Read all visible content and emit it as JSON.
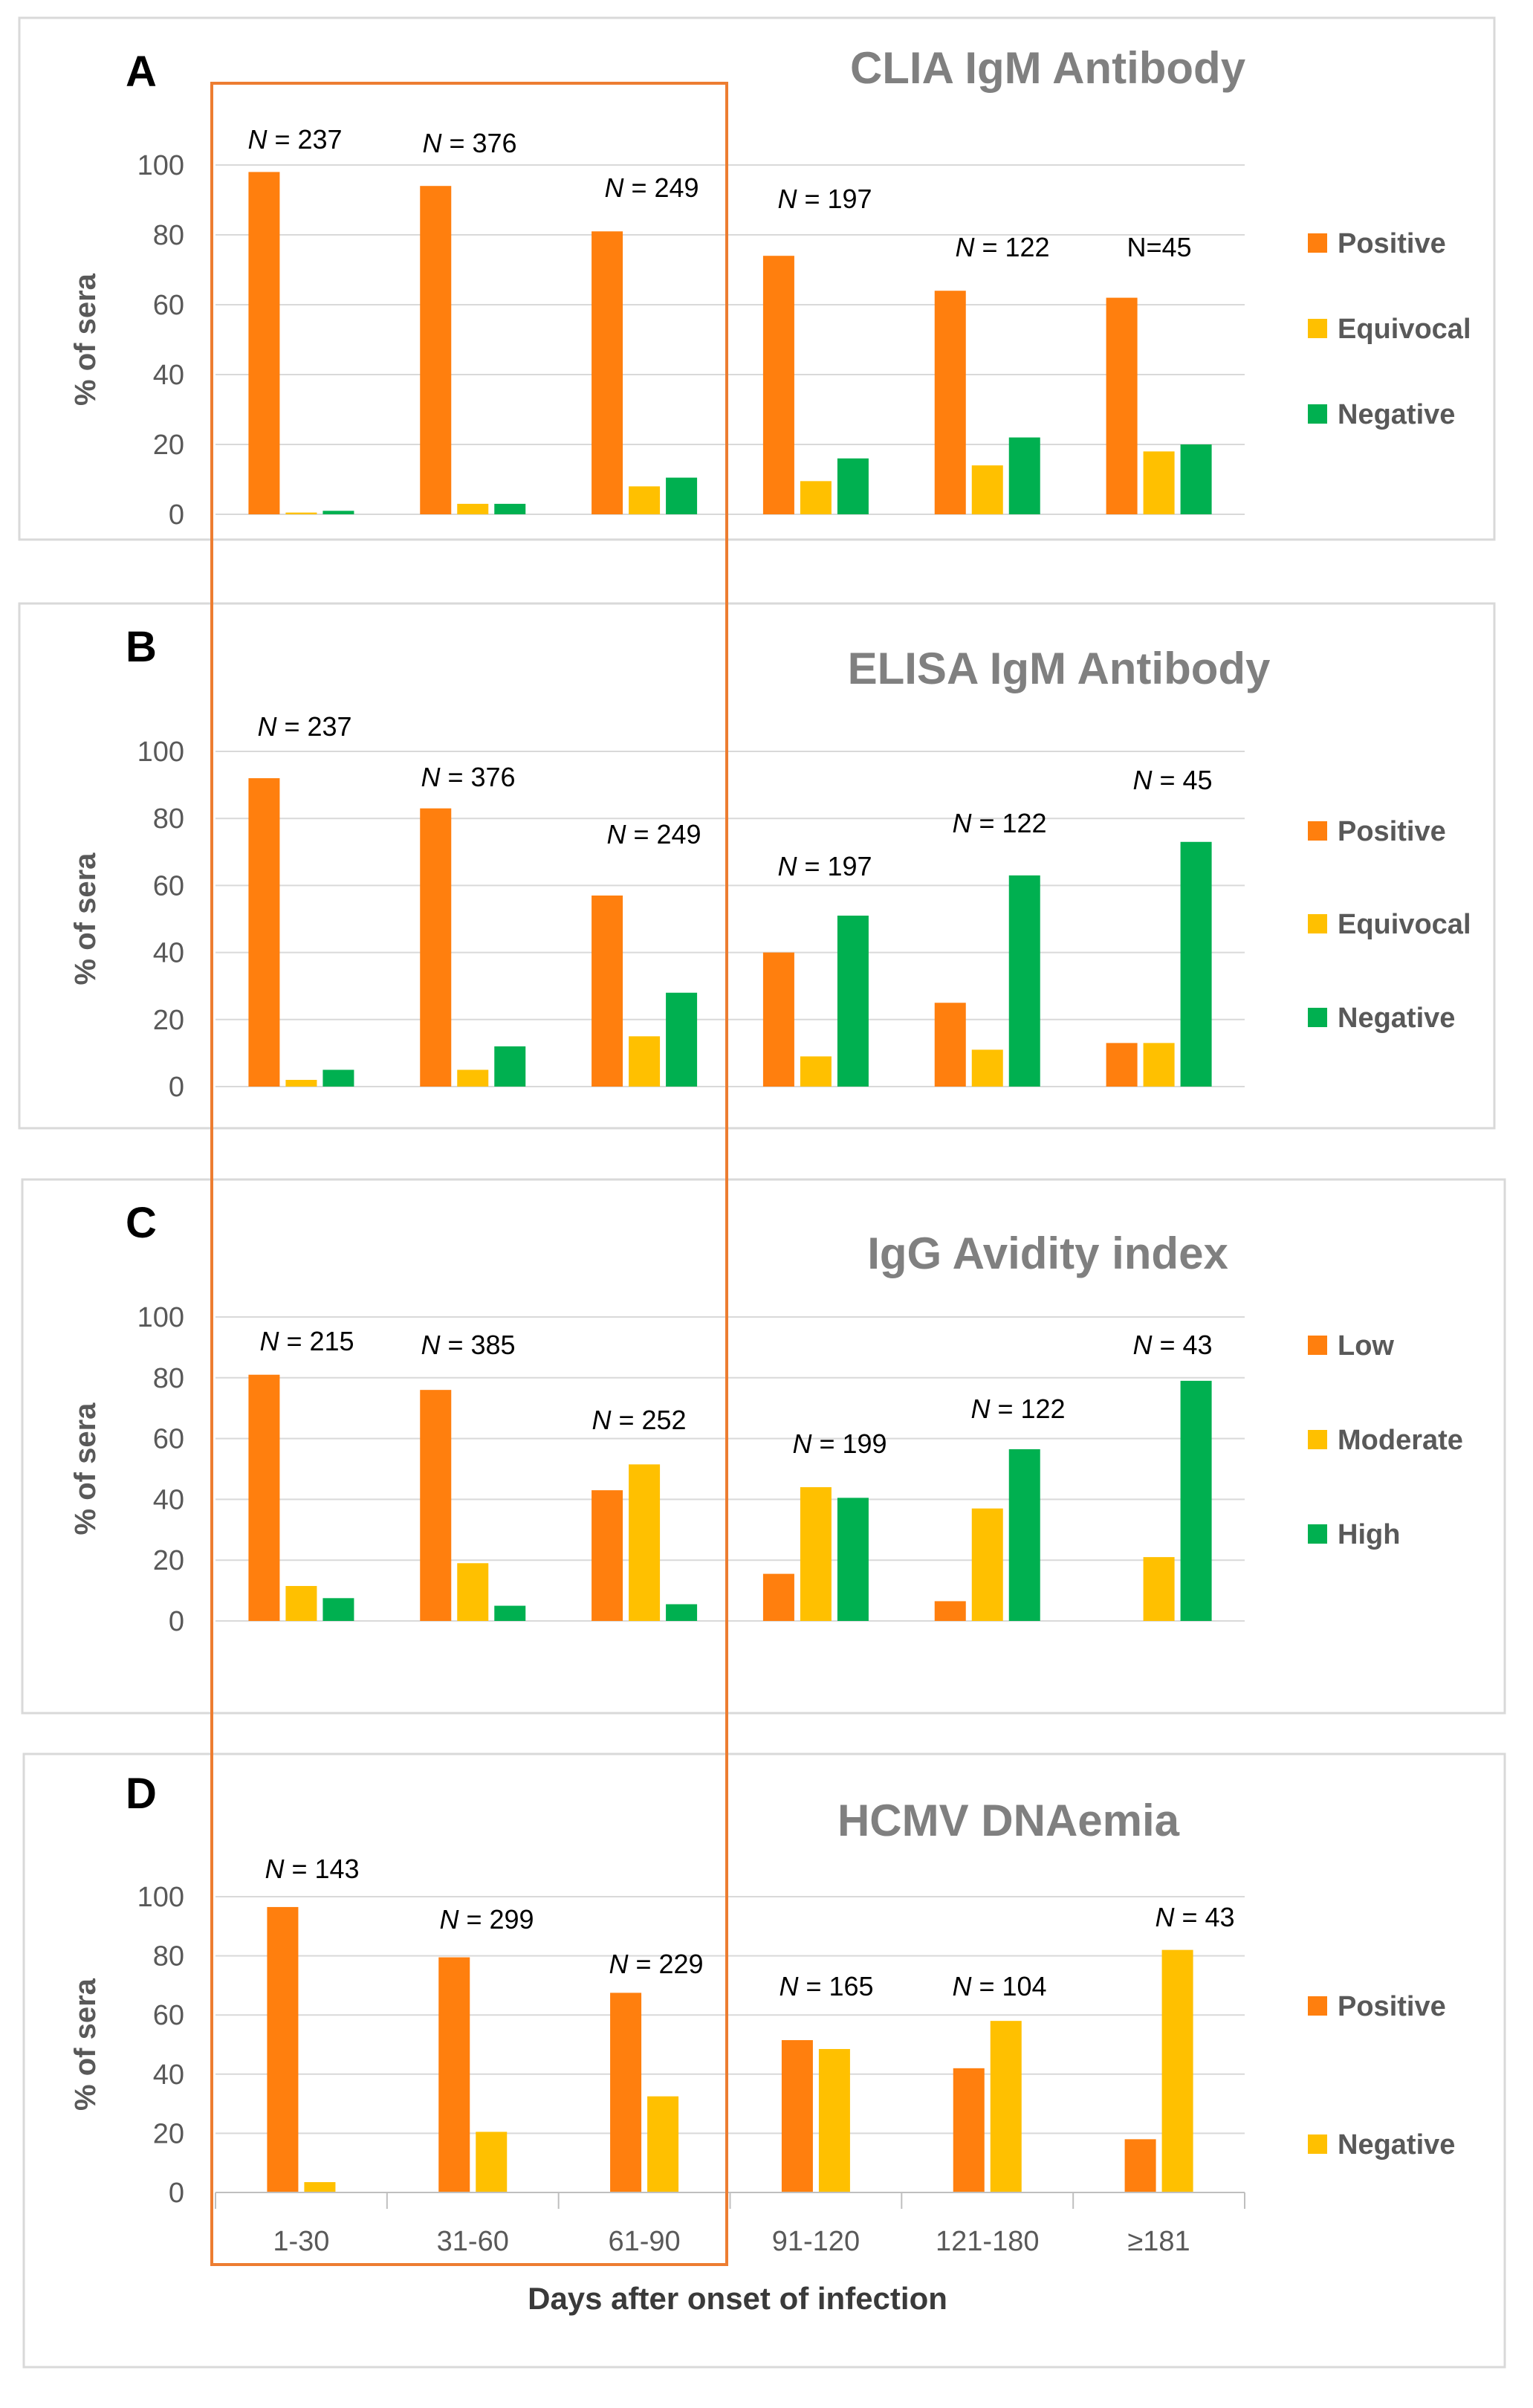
{
  "figure": {
    "xlabel": "Days after onset of infection",
    "categories": [
      "1-30",
      "31-60",
      "61-90",
      "91-120",
      "121-180",
      "≥181"
    ]
  },
  "colors": {
    "orange": "#FF7F0E",
    "yellow": "#FFC000",
    "green": "#00B050",
    "highlight_box": "#ED7D31"
  },
  "chart_data": [
    {
      "panel": "A",
      "type": "bar",
      "title": "CLIA IgM Antibody",
      "ylabel": "% of sera",
      "ylim": [
        0,
        100
      ],
      "yticks": [
        0,
        20,
        40,
        60,
        80,
        100
      ],
      "categories": [
        "1-30",
        "31-60",
        "61-90",
        "91-120",
        "121-180",
        "≥181"
      ],
      "n_labels": [
        "N = 237",
        "N = 376",
        "N = 249",
        "N = 197",
        "N = 122",
        "N=45"
      ],
      "series": [
        {
          "name": "Positive",
          "color": "#FF7F0E",
          "values": [
            98,
            94,
            81,
            74,
            64,
            62
          ]
        },
        {
          "name": "Equivocal",
          "color": "#FFC000",
          "values": [
            0.5,
            3,
            8,
            9.5,
            14,
            18
          ]
        },
        {
          "name": "Negative",
          "color": "#00B050",
          "values": [
            1,
            3,
            10.5,
            16,
            22,
            20
          ]
        }
      ]
    },
    {
      "panel": "B",
      "type": "bar",
      "title": "ELISA IgM Antibody",
      "ylabel": "% of sera",
      "ylim": [
        0,
        100
      ],
      "yticks": [
        0,
        20,
        40,
        60,
        80,
        100
      ],
      "categories": [
        "1-30",
        "31-60",
        "61-90",
        "91-120",
        "121-180",
        "≥181"
      ],
      "n_labels": [
        "N = 237",
        "N = 376",
        "N = 249",
        "N = 197",
        "N = 122",
        "N = 45"
      ],
      "series": [
        {
          "name": "Positive",
          "color": "#FF7F0E",
          "values": [
            92,
            83,
            57,
            40,
            25,
            13
          ]
        },
        {
          "name": "Equivocal",
          "color": "#FFC000",
          "values": [
            2,
            5,
            15,
            9,
            11,
            13
          ]
        },
        {
          "name": "Negative",
          "color": "#00B050",
          "values": [
            5,
            12,
            28,
            51,
            63,
            73
          ]
        }
      ]
    },
    {
      "panel": "C",
      "type": "bar",
      "title": "IgG Avidity index",
      "ylabel": "% of sera",
      "ylim": [
        0,
        100
      ],
      "yticks": [
        0,
        20,
        40,
        60,
        80,
        100
      ],
      "categories": [
        "1-30",
        "31-60",
        "61-90",
        "91-120",
        "121-180",
        "≥181"
      ],
      "n_labels": [
        "N = 215",
        "N = 385",
        "N = 252",
        "N = 199",
        "N = 122",
        "N = 43"
      ],
      "series": [
        {
          "name": "Low",
          "color": "#FF7F0E",
          "values": [
            81,
            76,
            43,
            15.5,
            6.5,
            0
          ]
        },
        {
          "name": "Moderate",
          "color": "#FFC000",
          "values": [
            11.5,
            19,
            51.5,
            44,
            37,
            21
          ]
        },
        {
          "name": "High",
          "color": "#00B050",
          "values": [
            7.5,
            5,
            5.5,
            40.5,
            56.5,
            79
          ]
        }
      ]
    },
    {
      "panel": "D",
      "type": "bar",
      "title": "HCMV DNAemia",
      "ylabel": "% of sera",
      "ylim": [
        0,
        100
      ],
      "yticks": [
        0,
        20,
        40,
        60,
        80,
        100
      ],
      "categories": [
        "1-30",
        "31-60",
        "61-90",
        "91-120",
        "121-180",
        "≥181"
      ],
      "n_labels": [
        "N = 143",
        "N = 299",
        "N = 229",
        "N = 165",
        "N = 104",
        "N = 43"
      ],
      "series": [
        {
          "name": "Positive",
          "color": "#FF7F0E",
          "values": [
            96.5,
            79.5,
            67.5,
            51.5,
            42,
            18
          ]
        },
        {
          "name": "Negative",
          "color": "#FFC000",
          "values": [
            3.5,
            20.5,
            32.5,
            48.5,
            58,
            82
          ]
        }
      ]
    }
  ]
}
